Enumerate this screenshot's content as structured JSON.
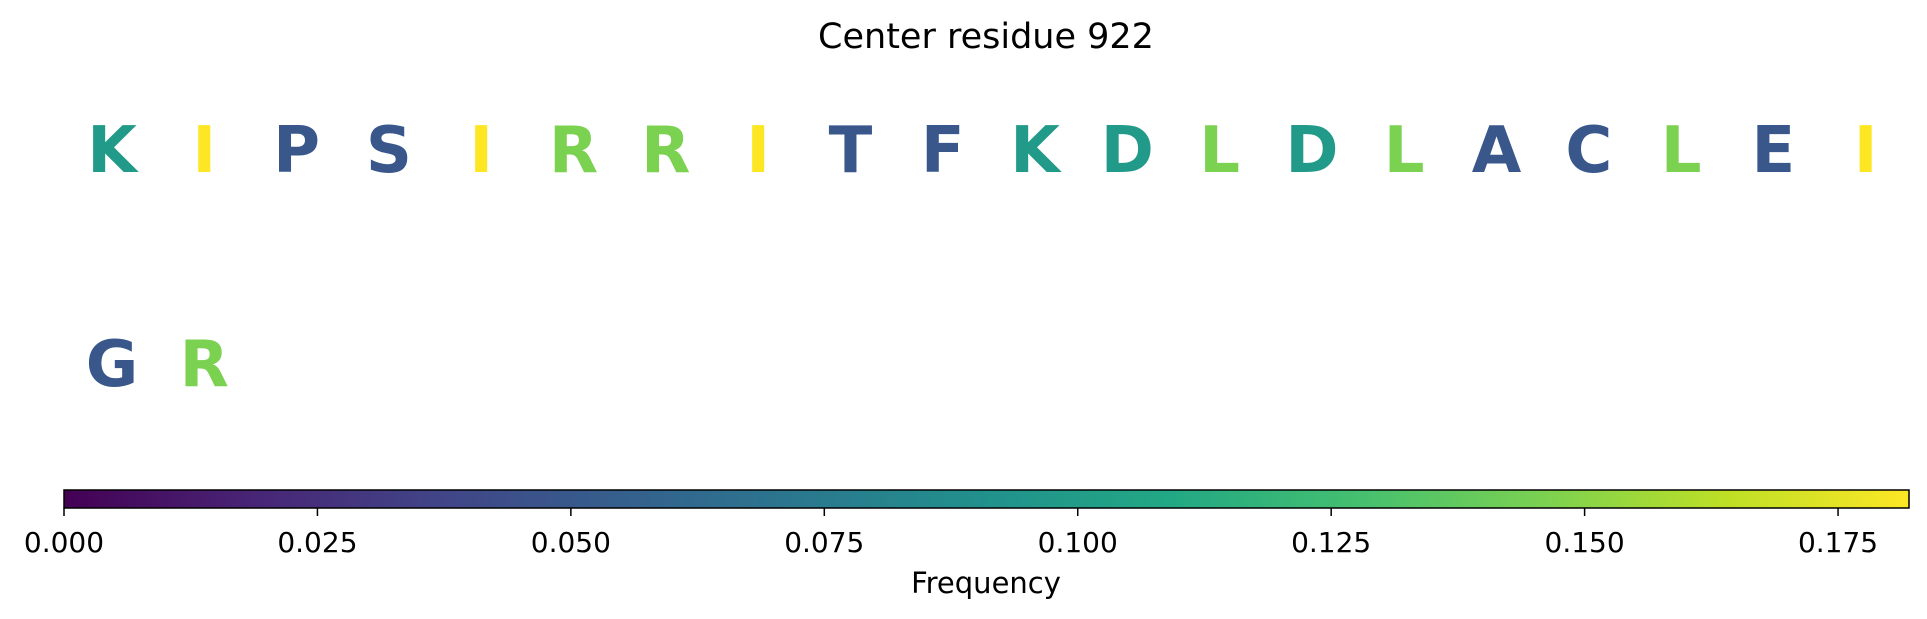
{
  "chart_data": {
    "type": "table",
    "title": "Center residue 922",
    "rows": [
      [
        {
          "letter": "K",
          "value": 0.098
        },
        {
          "letter": "I",
          "value": 0.182
        },
        {
          "letter": "P",
          "value": 0.049
        },
        {
          "letter": "S",
          "value": 0.049
        },
        {
          "letter": "I",
          "value": 0.182
        },
        {
          "letter": "R",
          "value": 0.146
        },
        {
          "letter": "R",
          "value": 0.146
        },
        {
          "letter": "I",
          "value": 0.182
        },
        {
          "letter": "T",
          "value": 0.049
        },
        {
          "letter": "F",
          "value": 0.049
        },
        {
          "letter": "K",
          "value": 0.098
        },
        {
          "letter": "D",
          "value": 0.098
        },
        {
          "letter": "L",
          "value": 0.146
        },
        {
          "letter": "D",
          "value": 0.098
        },
        {
          "letter": "L",
          "value": 0.146
        },
        {
          "letter": "A",
          "value": 0.049
        },
        {
          "letter": "C",
          "value": 0.049
        },
        {
          "letter": "L",
          "value": 0.146
        },
        {
          "letter": "E",
          "value": 0.049
        },
        {
          "letter": "I",
          "value": 0.182
        }
      ],
      [
        {
          "letter": "G",
          "value": 0.049
        },
        {
          "letter": "R",
          "value": 0.146
        }
      ]
    ],
    "colorbar": {
      "label": "Frequency",
      "colormap": "viridis",
      "range": [
        0,
        0.182
      ],
      "ticks": [
        0.0,
        0.025,
        0.05,
        0.075,
        0.1,
        0.125,
        0.15,
        0.175
      ],
      "tick_labels": [
        "0.000",
        "0.025",
        "0.050",
        "0.075",
        "0.100",
        "0.125",
        "0.150",
        "0.175"
      ]
    }
  }
}
